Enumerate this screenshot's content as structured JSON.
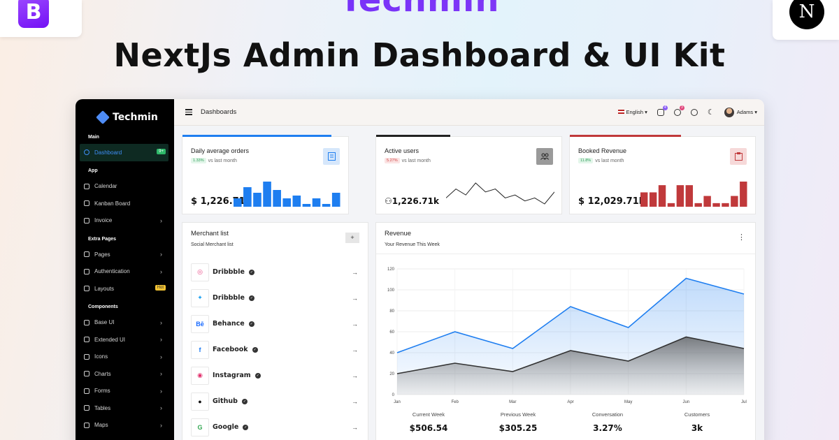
{
  "brand_top": "Techmin",
  "headline": "NextJs Admin Dashboard & UI Kit",
  "corner_logos": {
    "left": "B",
    "right": "N"
  },
  "app": {
    "logo": "Techmin",
    "breadcrumb": "Dashboards",
    "topbar": {
      "language": "English",
      "user": "Adams",
      "mail_count": "4",
      "bell_count": "3"
    },
    "sidebar": {
      "section_main": "Main",
      "dashboard": "Dashboard",
      "dashboard_badge": "9+",
      "section_app": "App",
      "calendar": "Calendar",
      "kanban": "Kanban Board",
      "invoice": "Invoice",
      "section_extra": "Extra Pages",
      "pages": "Pages",
      "authentication": "Authentication",
      "layouts": "Layouts",
      "layouts_badge": "Hot",
      "section_components": "Components",
      "base_ui": "Base UI",
      "extended_ui": "Extended UI",
      "icons": "Icons",
      "charts": "Charts",
      "forms": "Forms",
      "tables": "Tables",
      "maps": "Maps"
    },
    "kpis": [
      {
        "title": "Daily average orders",
        "trend": "1.33%",
        "trend_label": "vs last month",
        "value": "$ 1,226.71k",
        "accent": "#1e7ef0",
        "progress": 0.9,
        "bars": [
          3,
          7,
          5,
          9,
          6,
          3,
          4,
          1,
          3,
          1,
          5
        ]
      },
      {
        "title": "Active users",
        "trend": "5.27%",
        "trend_label": "vs last month",
        "value": "1,226.71k",
        "accent": "#222222",
        "progress": 0.4,
        "line": [
          4,
          7,
          5,
          9,
          6,
          7,
          4,
          5,
          3,
          4,
          2,
          6
        ]
      },
      {
        "title": "Booked Revenue",
        "trend": "11.8%",
        "trend_label": "vs last month",
        "value": "$ 12,029.71k",
        "accent": "#c0393b",
        "progress": 0.6,
        "bars": [
          4,
          4,
          6,
          1,
          6,
          6,
          1,
          3,
          1,
          1,
          3,
          7
        ]
      }
    ],
    "merchants": {
      "title": "Merchant list",
      "subtitle": "Social Merchant list",
      "add": "+",
      "items": [
        {
          "name": "Dribbble",
          "glyph": "◎",
          "color": "#ea4c89"
        },
        {
          "name": "Dribbble",
          "glyph": "✦",
          "color": "#1da1f2"
        },
        {
          "name": "Behance",
          "glyph": "Bē",
          "color": "#1769ff"
        },
        {
          "name": "Facebook",
          "glyph": "f",
          "color": "#1877f2"
        },
        {
          "name": "Instagram",
          "glyph": "◉",
          "color": "#e1306c"
        },
        {
          "name": "Github",
          "glyph": "●",
          "color": "#111111"
        },
        {
          "name": "Google",
          "glyph": "G",
          "color": "#34a853"
        }
      ]
    },
    "revenue": {
      "title": "Revenue",
      "subtitle": "Your Revenue This Week",
      "stats": [
        {
          "label": "Current Week",
          "value": "$506.54"
        },
        {
          "label": "Previous Week",
          "value": "$305.25"
        },
        {
          "label": "Conversation",
          "value": "3.27%"
        },
        {
          "label": "Customers",
          "value": "3k"
        }
      ]
    }
  },
  "chart_data": {
    "type": "area",
    "x": [
      "Jan",
      "Feb",
      "Mar",
      "Apr",
      "May",
      "Jun",
      "Jul"
    ],
    "ylim": [
      0,
      120
    ],
    "yticks": [
      0,
      20,
      40,
      60,
      80,
      100,
      120
    ],
    "series": [
      {
        "values": [
          40,
          60,
          44,
          84,
          64,
          111,
          96
        ],
        "color": "#1e7ef0"
      },
      {
        "values": [
          20,
          30,
          22,
          42,
          32,
          55,
          44
        ],
        "color": "#333333"
      }
    ]
  }
}
